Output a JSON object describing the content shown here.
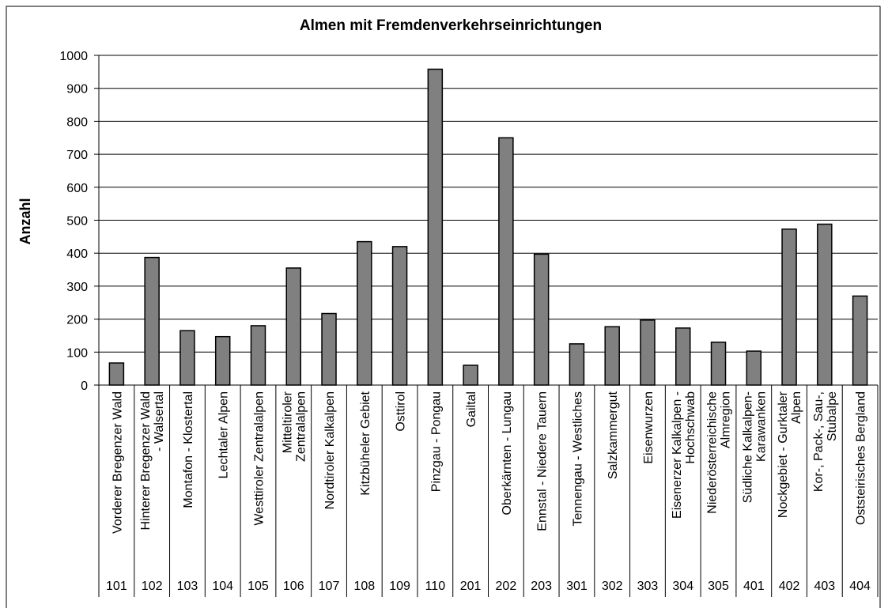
{
  "chart_data": {
    "type": "bar",
    "title": "Almen mit Fremdenverkehrseinrichtungen",
    "y_label": "Anzahl",
    "categories": [
      "Vorderer Bregenzer Wald",
      "Hinterer Bregenzer Wald - Walsertal",
      "Montafon - Klostertal",
      "Lechtaler Alpen",
      "Westtiroler Zentralalpen",
      "Mitteltiroler Zentralalpen",
      "Nordtiroler Kalkalpen",
      "Kitzbüheler Gebiet",
      "Osttirol",
      "Pinzgau - Pongau",
      "Gailtal",
      "Oberkärnten - Lungau",
      "Ennstal - Niedere Tauern",
      "Tennengau - Westliches",
      "Salzkammergut",
      "Eisenwurzen",
      "Eisenerzer Kalkalpen - Hochschwab",
      "Niederösterreichische Almregion",
      "Südliche Kalkalpen- Karawanken",
      "Nockgebiet - Gurktaler Alpen",
      "Kor-, Pack-, Sau-, Stubalpe",
      "Oststeirisches Bergland"
    ],
    "codes": [
      "101",
      "102",
      "103",
      "104",
      "105",
      "106",
      "107",
      "108",
      "109",
      "110",
      "201",
      "202",
      "203",
      "301",
      "302",
      "303",
      "304",
      "305",
      "401",
      "402",
      "403",
      "404"
    ],
    "values": [
      67,
      387,
      165,
      147,
      180,
      355,
      217,
      435,
      420,
      958,
      60,
      750,
      397,
      125,
      177,
      197,
      173,
      130,
      103,
      473,
      488,
      270
    ],
    "color": "#808080",
    "ylim": [
      0,
      1000
    ],
    "yticks": [
      0,
      100,
      200,
      300,
      400,
      500,
      600,
      700,
      800,
      900,
      1000
    ],
    "grid": true
  }
}
